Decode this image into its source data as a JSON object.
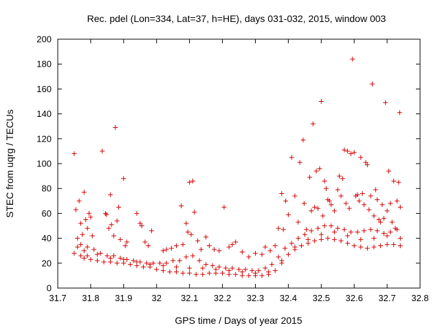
{
  "chart_data": {
    "type": "scatter",
    "title": "Rec. pdel (Lon=334, Lat=37, h=HE), days 031-032, 2015, window 003",
    "xlabel": "GPS time / Days of year 2015",
    "ylabel": "STEC from uqrg / TECUs",
    "xlim": [
      31.7,
      32.8
    ],
    "ylim": [
      0,
      200
    ],
    "x_ticks": [
      "31.7",
      "31.8",
      "31.9",
      "32",
      "32.1",
      "32.2",
      "32.3",
      "32.4",
      "32.5",
      "32.6",
      "32.7",
      "32.8"
    ],
    "x_tick_values": [
      31.7,
      31.8,
      31.9,
      32.0,
      32.1,
      32.2,
      32.3,
      32.4,
      32.5,
      32.6,
      32.7,
      32.8
    ],
    "y_ticks": [
      "0",
      "20",
      "40",
      "60",
      "80",
      "100",
      "120",
      "140",
      "160",
      "180",
      "200"
    ],
    "y_tick_values": [
      0,
      20,
      40,
      60,
      80,
      100,
      120,
      140,
      160,
      180,
      200
    ],
    "grid": false,
    "marker": "+",
    "color": "#d40000",
    "series": [
      {
        "name": "STEC",
        "points": [
          [
            31.75,
            108
          ],
          [
            31.755,
            63
          ],
          [
            31.76,
            40
          ],
          [
            31.765,
            70
          ],
          [
            31.77,
            52
          ],
          [
            31.775,
            43
          ],
          [
            31.78,
            77
          ],
          [
            31.785,
            55
          ],
          [
            31.79,
            48
          ],
          [
            31.795,
            60
          ],
          [
            31.8,
            57
          ],
          [
            31.805,
            42
          ],
          [
            31.835,
            110
          ],
          [
            31.845,
            60
          ],
          [
            31.848,
            59
          ],
          [
            31.855,
            48
          ],
          [
            31.86,
            75
          ],
          [
            31.863,
            51
          ],
          [
            31.87,
            42
          ],
          [
            31.875,
            129
          ],
          [
            31.88,
            54
          ],
          [
            31.885,
            65
          ],
          [
            31.89,
            39
          ],
          [
            31.9,
            88
          ],
          [
            31.905,
            34
          ],
          [
            31.91,
            37
          ],
          [
            31.94,
            60
          ],
          [
            31.95,
            52
          ],
          [
            31.955,
            50
          ],
          [
            31.965,
            37
          ],
          [
            31.975,
            34
          ],
          [
            31.985,
            46
          ],
          [
            32.02,
            30
          ],
          [
            32.03,
            31
          ],
          [
            32.045,
            32
          ],
          [
            32.06,
            34
          ],
          [
            32.075,
            66
          ],
          [
            32.08,
            35
          ],
          [
            32.09,
            52
          ],
          [
            32.095,
            45
          ],
          [
            32.1,
            85
          ],
          [
            32.105,
            43
          ],
          [
            32.11,
            86
          ],
          [
            32.115,
            61
          ],
          [
            32.125,
            38
          ],
          [
            32.135,
            31
          ],
          [
            32.15,
            41
          ],
          [
            32.16,
            34
          ],
          [
            32.175,
            31
          ],
          [
            32.19,
            30
          ],
          [
            32.205,
            65
          ],
          [
            32.22,
            33
          ],
          [
            32.23,
            35
          ],
          [
            32.24,
            37
          ],
          [
            32.26,
            29
          ],
          [
            32.28,
            25
          ],
          [
            32.3,
            28
          ],
          [
            32.32,
            27
          ],
          [
            32.33,
            33
          ],
          [
            32.345,
            30
          ],
          [
            32.36,
            34
          ],
          [
            32.37,
            48
          ],
          [
            32.38,
            76
          ],
          [
            32.385,
            47
          ],
          [
            32.392,
            70
          ],
          [
            32.4,
            59
          ],
          [
            32.41,
            105
          ],
          [
            32.42,
            74
          ],
          [
            32.43,
            53
          ],
          [
            32.435,
            101
          ],
          [
            32.445,
            119
          ],
          [
            32.448,
            68
          ],
          [
            32.455,
            47
          ],
          [
            32.465,
            89
          ],
          [
            32.47,
            62
          ],
          [
            32.475,
            132
          ],
          [
            32.48,
            65
          ],
          [
            32.485,
            94
          ],
          [
            32.49,
            64
          ],
          [
            32.495,
            96
          ],
          [
            32.5,
            150
          ],
          [
            32.505,
            58
          ],
          [
            32.51,
            86
          ],
          [
            32.515,
            80
          ],
          [
            32.52,
            71
          ],
          [
            32.525,
            70
          ],
          [
            32.53,
            67
          ],
          [
            32.54,
            62
          ],
          [
            32.55,
            79
          ],
          [
            32.555,
            90
          ],
          [
            32.56,
            74
          ],
          [
            32.565,
            88
          ],
          [
            32.57,
            111
          ],
          [
            32.575,
            68
          ],
          [
            32.58,
            110
          ],
          [
            32.585,
            64
          ],
          [
            32.59,
            108
          ],
          [
            32.595,
            184
          ],
          [
            32.6,
            109
          ],
          [
            32.605,
            74
          ],
          [
            32.61,
            75
          ],
          [
            32.615,
            70
          ],
          [
            32.62,
            105
          ],
          [
            32.625,
            76
          ],
          [
            32.63,
            67
          ],
          [
            32.635,
            101
          ],
          [
            32.64,
            99
          ],
          [
            32.645,
            63
          ],
          [
            32.65,
            74
          ],
          [
            32.655,
            164
          ],
          [
            32.66,
            58
          ],
          [
            32.665,
            79
          ],
          [
            32.67,
            71
          ],
          [
            32.675,
            55
          ],
          [
            32.68,
            53
          ],
          [
            32.685,
            67
          ],
          [
            32.69,
            56
          ],
          [
            32.695,
            149
          ],
          [
            32.7,
            62
          ],
          [
            32.705,
            94
          ],
          [
            32.71,
            68
          ],
          [
            32.715,
            53
          ],
          [
            32.72,
            86
          ],
          [
            32.725,
            48
          ],
          [
            32.73,
            70
          ],
          [
            32.735,
            85
          ],
          [
            32.738,
            141
          ],
          [
            32.74,
            65
          ],
          [
            31.75,
            28
          ],
          [
            31.76,
            33
          ],
          [
            31.77,
            26
          ],
          [
            31.78,
            24
          ],
          [
            31.79,
            26
          ],
          [
            31.8,
            23
          ],
          [
            31.82,
            22
          ],
          [
            31.84,
            21
          ],
          [
            31.86,
            21
          ],
          [
            31.88,
            20
          ],
          [
            31.9,
            20
          ],
          [
            31.92,
            19
          ],
          [
            31.94,
            18
          ],
          [
            31.96,
            17
          ],
          [
            31.98,
            17
          ],
          [
            32.0,
            15
          ],
          [
            32.02,
            14
          ],
          [
            32.04,
            13
          ],
          [
            32.06,
            13
          ],
          [
            32.08,
            12
          ],
          [
            32.1,
            12
          ],
          [
            32.12,
            11
          ],
          [
            32.14,
            11
          ],
          [
            32.16,
            12
          ],
          [
            32.18,
            12
          ],
          [
            32.2,
            12
          ],
          [
            32.22,
            11
          ],
          [
            32.24,
            11
          ],
          [
            32.26,
            10
          ],
          [
            32.28,
            10
          ],
          [
            32.3,
            10
          ],
          [
            32.32,
            10
          ],
          [
            32.34,
            11
          ],
          [
            32.36,
            14
          ],
          [
            32.38,
            20
          ],
          [
            32.4,
            27
          ],
          [
            32.42,
            31
          ],
          [
            32.44,
            34
          ],
          [
            32.46,
            36
          ],
          [
            32.48,
            38
          ],
          [
            32.5,
            39
          ],
          [
            32.52,
            40
          ],
          [
            32.54,
            39
          ],
          [
            32.56,
            38
          ],
          [
            32.58,
            36
          ],
          [
            32.6,
            34
          ],
          [
            32.62,
            33
          ],
          [
            32.64,
            32
          ],
          [
            32.66,
            33
          ],
          [
            32.68,
            34
          ],
          [
            32.7,
            35
          ],
          [
            32.72,
            35
          ],
          [
            32.74,
            34
          ],
          [
            31.77,
            35
          ],
          [
            31.79,
            33
          ],
          [
            31.81,
            31
          ],
          [
            31.83,
            28
          ],
          [
            31.85,
            26
          ],
          [
            31.87,
            26
          ],
          [
            31.89,
            24
          ],
          [
            31.91,
            23
          ],
          [
            31.93,
            22
          ],
          [
            31.95,
            21
          ],
          [
            31.97,
            20
          ],
          [
            31.99,
            20
          ],
          [
            32.01,
            20
          ],
          [
            32.03,
            20
          ],
          [
            32.05,
            22
          ],
          [
            32.07,
            22
          ],
          [
            32.09,
            25
          ],
          [
            32.11,
            26
          ],
          [
            32.13,
            22
          ],
          [
            32.15,
            19
          ],
          [
            32.17,
            18
          ],
          [
            32.19,
            17
          ],
          [
            32.21,
            16
          ],
          [
            32.23,
            16
          ],
          [
            32.25,
            15
          ],
          [
            32.27,
            15
          ],
          [
            32.29,
            14
          ],
          [
            32.31,
            14
          ],
          [
            32.33,
            16
          ],
          [
            32.35,
            19
          ],
          [
            32.37,
            25
          ],
          [
            32.39,
            32
          ],
          [
            32.41,
            36
          ],
          [
            32.43,
            40
          ],
          [
            32.45,
            43
          ],
          [
            32.47,
            46
          ],
          [
            32.49,
            48
          ],
          [
            32.51,
            50
          ],
          [
            32.53,
            50
          ],
          [
            32.55,
            48
          ],
          [
            32.57,
            47
          ],
          [
            32.59,
            45
          ],
          [
            32.61,
            45
          ],
          [
            32.63,
            46
          ],
          [
            32.65,
            47
          ],
          [
            32.67,
            46
          ],
          [
            32.69,
            44
          ],
          [
            32.71,
            45
          ],
          [
            32.73,
            47
          ],
          [
            31.78,
            30
          ],
          [
            31.82,
            27
          ],
          [
            31.86,
            24
          ],
          [
            31.9,
            23
          ],
          [
            31.94,
            21
          ],
          [
            31.98,
            19
          ],
          [
            32.02,
            18
          ],
          [
            32.06,
            17
          ],
          [
            32.1,
            16
          ],
          [
            32.14,
            16
          ],
          [
            32.18,
            15
          ],
          [
            32.22,
            14
          ],
          [
            32.26,
            13
          ],
          [
            32.3,
            12
          ],
          [
            32.34,
            13
          ],
          [
            32.38,
            22
          ],
          [
            32.42,
            33
          ],
          [
            32.46,
            39
          ],
          [
            32.5,
            43
          ],
          [
            32.54,
            45
          ],
          [
            32.58,
            42
          ],
          [
            32.62,
            39
          ],
          [
            32.66,
            40
          ],
          [
            32.7,
            42
          ],
          [
            32.74,
            40
          ]
        ]
      }
    ]
  }
}
